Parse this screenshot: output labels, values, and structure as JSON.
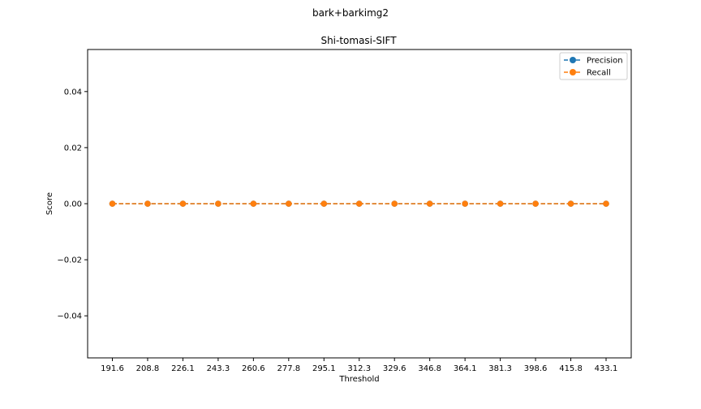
{
  "chart_data": {
    "type": "line",
    "suptitle": "bark+barkimg2",
    "title": "Shi-tomasi-SIFT",
    "xlabel": "Threshold",
    "ylabel": "Score",
    "categories": [
      "191.6",
      "208.8",
      "226.1",
      "243.3",
      "260.6",
      "277.8",
      "295.1",
      "312.3",
      "329.6",
      "346.8",
      "364.1",
      "381.3",
      "398.6",
      "415.8",
      "433.1"
    ],
    "series": [
      {
        "name": "Precision",
        "color": "#1f77b4",
        "values": [
          0,
          0,
          0,
          0,
          0,
          0,
          0,
          0,
          0,
          0,
          0,
          0,
          0,
          0,
          0
        ]
      },
      {
        "name": "Recall",
        "color": "#ff7f0e",
        "values": [
          0,
          0,
          0,
          0,
          0,
          0,
          0,
          0,
          0,
          0,
          0,
          0,
          0,
          0,
          0
        ]
      }
    ],
    "ylim": [
      -0.055,
      0.055
    ],
    "yticks": [
      -0.04,
      -0.02,
      0.0,
      0.02,
      0.04
    ],
    "ytick_labels": [
      "−0.04",
      "−0.02",
      "0.00",
      "0.02",
      "0.04"
    ],
    "line_style": "dashed",
    "marker": "circle",
    "grid": false,
    "legend_position": "top-right"
  }
}
